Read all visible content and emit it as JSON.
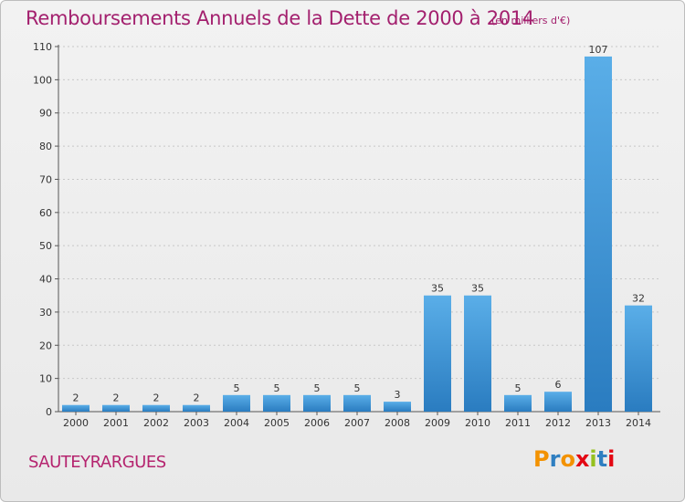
{
  "header": {
    "title": "Remboursements Annuels de la Dette de 2000 à 2014",
    "unit": "(en milliers d'€)"
  },
  "footer": {
    "commune": "SAUTEYRARGUES",
    "logo_text": "Proxiti",
    "logo_colors": [
      "#f39200",
      "#2f7fc1",
      "#f39200",
      "#e30613",
      "#95c11f",
      "#2f7fc1",
      "#e30613"
    ]
  },
  "chart_data": {
    "type": "bar",
    "title": "Remboursements Annuels de la Dette de 2000 à 2014",
    "unit": "(en milliers d'€)",
    "categories": [
      "2000",
      "2001",
      "2002",
      "2003",
      "2004",
      "2005",
      "2006",
      "2007",
      "2008",
      "2009",
      "2010",
      "2011",
      "2012",
      "2013",
      "2014"
    ],
    "values": [
      2,
      2,
      2,
      2,
      5,
      5,
      5,
      5,
      3,
      35,
      35,
      5,
      6,
      107,
      32
    ],
    "data_labels": [
      "2",
      "2",
      "2",
      "2",
      "5",
      "5",
      "5",
      "5",
      "3",
      "35",
      "35",
      "5",
      "6",
      "107",
      "32"
    ],
    "ylim": [
      0,
      110
    ],
    "yticks": [
      0,
      10,
      20,
      30,
      40,
      50,
      60,
      70,
      80,
      90,
      100,
      110
    ],
    "grid": true,
    "bar_color": "#3a8fd6"
  }
}
